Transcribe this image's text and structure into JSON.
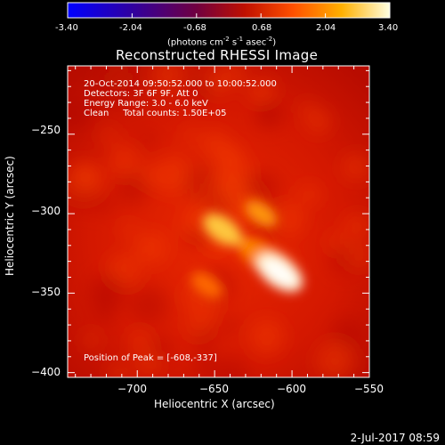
{
  "colorbar": {
    "ticks": [
      "-3.40",
      "-2.04",
      "-0.68",
      "0.68",
      "2.04",
      "3.40"
    ],
    "units_prefix": "(photons cm",
    "units_exp1": "-2",
    "units_mid1": " s",
    "units_exp2": "-1",
    "units_mid2": " asec",
    "units_exp3": "-2",
    "units_suffix": ")",
    "range": [
      -3.4,
      3.4
    ],
    "colors": [
      "#0000ff",
      "#300040",
      "#800000",
      "#ff4000",
      "#ffc000",
      "#ffffff"
    ]
  },
  "chart_data": {
    "type": "heatmap",
    "title": "Reconstructed RHESSI Image",
    "xlabel": "Heliocentric X (arcsec)",
    "ylabel": "Heliocentric Y (arcsec)",
    "xlim": [
      -745,
      -550
    ],
    "ylim": [
      -403,
      -207
    ],
    "xticks": [
      -700,
      -650,
      -600,
      -550
    ],
    "xtick_labels": [
      "−700",
      "−650",
      "−600",
      "−550"
    ],
    "yticks": [
      -250,
      -300,
      -350,
      -400
    ],
    "ytick_labels": [
      "−250",
      "−300",
      "−350",
      "−400"
    ],
    "annotations": [
      "20-Oct-2014 09:50:52.000 to 10:00:52.000",
      "Detectors: 3F 6F 9F, Att 0",
      "Energy Range: 3.0 - 6.0 keV",
      "Clean     Total counts: 1.50E+05"
    ],
    "peak_label": "Position of Peak = [-608,-337]",
    "peak": [
      -608,
      -337
    ],
    "sources": [
      {
        "x": -608,
        "y": -337,
        "intensity": 3.4
      },
      {
        "x": -645,
        "y": -310,
        "intensity": 2.4
      },
      {
        "x": -620,
        "y": -300,
        "intensity": 1.6
      },
      {
        "x": -655,
        "y": -345,
        "intensity": 1.5
      }
    ],
    "background_level": 0.5,
    "grid": false
  },
  "footer": {
    "date": "2-Jul-2017 08:59"
  }
}
